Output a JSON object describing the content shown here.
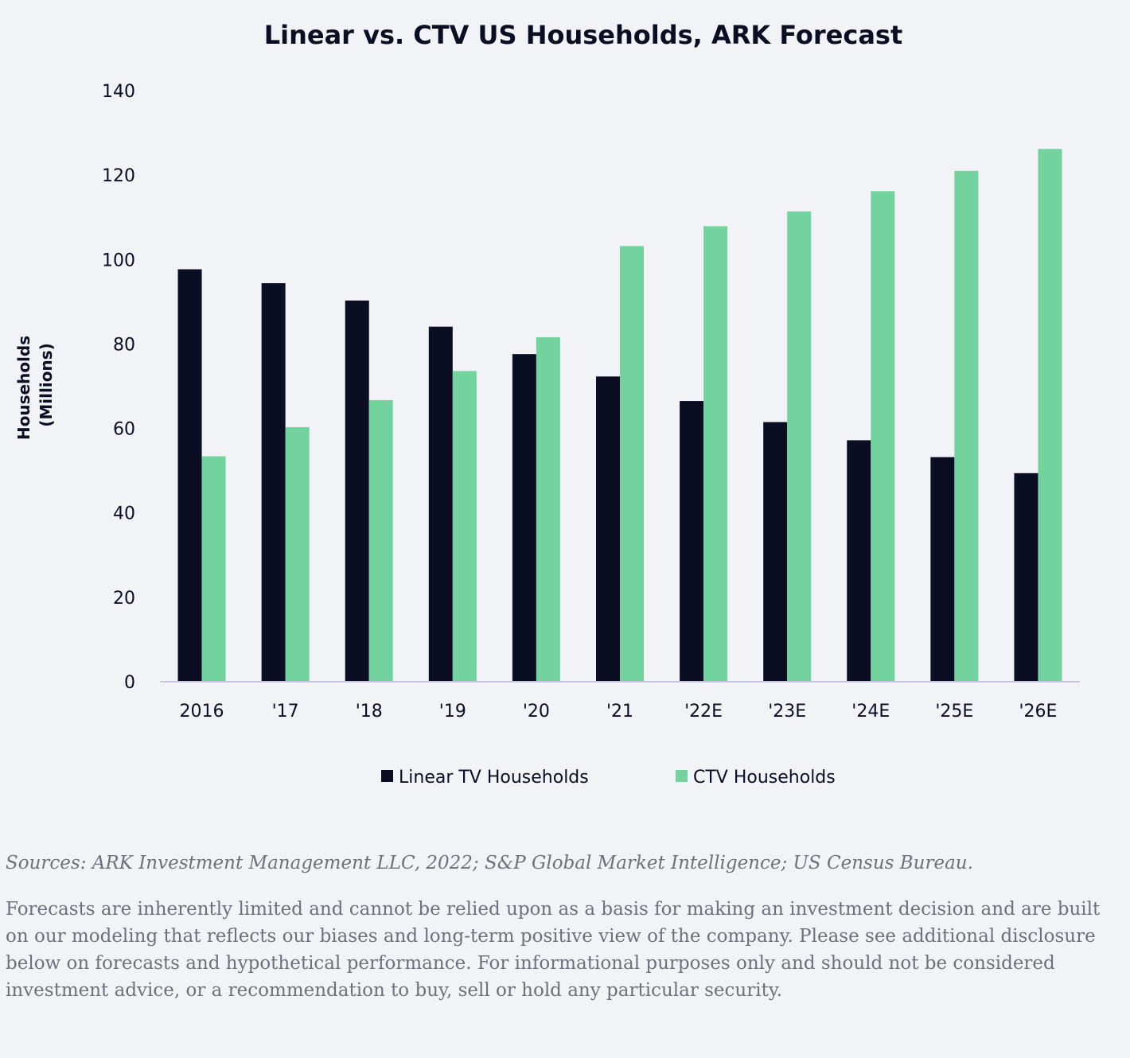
{
  "chart_data": {
    "type": "bar",
    "title": "Linear vs. CTV US Households, ARK Forecast",
    "ylabel_line1": "Households",
    "ylabel_line2": "(Millions)",
    "xlabel": "",
    "ylim": [
      0,
      140
    ],
    "yticks": [
      0,
      20,
      40,
      60,
      80,
      100,
      120,
      140
    ],
    "grid": false,
    "legend_position": "bottom-center",
    "categories": [
      "2016",
      "'17",
      "'18",
      "'19",
      "'20",
      "'21",
      "'22E",
      "'23E",
      "'24E",
      "'25E",
      "'26E"
    ],
    "series": [
      {
        "name": "Linear TV Households",
        "color": "#0b0e22",
        "values": [
          97.7,
          94.4,
          90.3,
          84.1,
          77.6,
          72.3,
          66.5,
          61.5,
          57.2,
          53.2,
          49.4
        ]
      },
      {
        "name": "CTV Households",
        "color": "#72d39e",
        "values": [
          53.4,
          60.3,
          66.7,
          73.6,
          81.6,
          103.2,
          107.9,
          111.4,
          116.2,
          121.0,
          126.2
        ]
      }
    ]
  },
  "footer": {
    "sources": "Sources: ARK Investment Management LLC, 2022; S&P Global Market Intelligence; US Census Bureau.",
    "disclaimer": "Forecasts are inherently limited and cannot be relied upon as a basis for making an investment decision and are built on our modeling that reflects our biases and long-term positive view of the company. Please see additional disclosure below on forecasts and hypothetical performance. For informational purposes only and should not be considered investment advice, or a recommendation to buy, sell or hold any particular security."
  },
  "colors": {
    "background": "#f2f3f7",
    "axis_line": "#c7c8e0",
    "text": "#0b0e22",
    "footnote": "#6f7079"
  }
}
